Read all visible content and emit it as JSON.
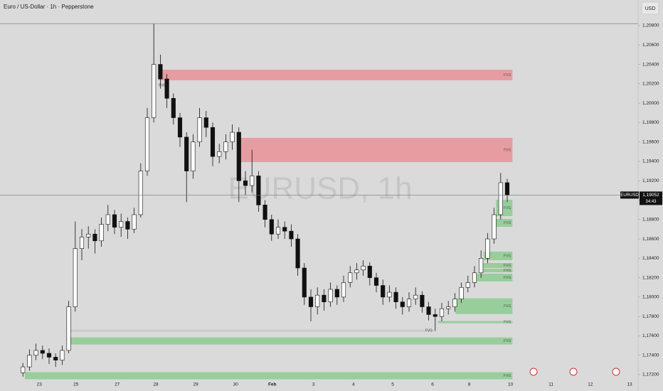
{
  "chart_data": {
    "type": "candlestick",
    "title": "Euro / US-Dollar · 1h · Pepperstone",
    "currency_button": "USD",
    "watermark": "EURUSD, 1h",
    "symbol": "EURUSD",
    "last_price": {
      "value": 1.19052,
      "label": "1,19052"
    },
    "countdown": "34:43",
    "open": [
      1.1722,
      1.1728,
      1.174,
      1.1745,
      1.1742,
      1.1738,
      1.1735,
      1.1745,
      1.179,
      1.185,
      1.1862,
      1.1865,
      1.1858,
      1.1875,
      1.1885,
      1.1872,
      1.1878,
      1.187,
      1.1885,
      1.193,
      1.1985,
      1.204,
      1.2025,
      1.2005,
      1.1985,
      1.1965,
      1.193,
      1.196,
      1.1985,
      1.1975,
      1.1945,
      1.195,
      1.196,
      1.197,
      1.192,
      1.1915,
      1.1925,
      1.1895,
      1.188,
      1.1865,
      1.1872,
      1.1868,
      1.186,
      1.183,
      1.18,
      1.179,
      1.1802,
      1.1795,
      1.1808,
      1.18,
      1.1815,
      1.1825,
      1.1828,
      1.1832,
      1.182,
      1.1812,
      1.18,
      1.1805,
      1.1795,
      1.179,
      1.1798,
      1.1802,
      1.179,
      1.1782,
      1.178,
      1.1788,
      1.179,
      1.1798,
      1.181,
      1.1815,
      1.1825,
      1.184,
      1.186,
      1.1885,
      1.1918
    ],
    "high": [
      1.1732,
      1.1746,
      1.1752,
      1.175,
      1.1747,
      1.1742,
      1.175,
      1.1796,
      1.1878,
      1.187,
      1.1873,
      1.187,
      1.1882,
      1.1895,
      1.189,
      1.1886,
      1.1882,
      1.1892,
      1.1938,
      1.1995,
      1.2082,
      1.205,
      1.203,
      1.201,
      1.199,
      1.197,
      1.1968,
      1.1995,
      1.1992,
      1.198,
      1.1958,
      1.1968,
      1.1978,
      1.1975,
      1.193,
      1.1952,
      1.193,
      1.19,
      1.1885,
      1.188,
      1.1878,
      1.1875,
      1.1865,
      1.1835,
      1.1808,
      1.181,
      1.1808,
      1.1815,
      1.1812,
      1.1822,
      1.1832,
      1.1835,
      1.1838,
      1.1836,
      1.1825,
      1.1818,
      1.1812,
      1.181,
      1.18,
      1.1805,
      1.181,
      1.1806,
      1.1795,
      1.1788,
      1.1794,
      1.1796,
      1.1804,
      1.1815,
      1.1822,
      1.1832,
      1.1848,
      1.1866,
      1.1892,
      1.1928,
      1.1922
    ],
    "low": [
      1.1718,
      1.1724,
      1.1735,
      1.1736,
      1.1731,
      1.1728,
      1.173,
      1.1742,
      1.1785,
      1.1838,
      1.185,
      1.1845,
      1.1852,
      1.1868,
      1.1865,
      1.1862,
      1.186,
      1.1866,
      1.1882,
      1.1925,
      1.198,
      1.2015,
      1.1995,
      1.1978,
      1.1955,
      1.1898,
      1.1922,
      1.1955,
      1.1965,
      1.1935,
      1.1938,
      1.1942,
      1.1952,
      1.1898,
      1.1905,
      1.1908,
      1.1888,
      1.1872,
      1.1858,
      1.186,
      1.186,
      1.1852,
      1.1822,
      1.1792,
      1.1775,
      1.1782,
      1.1786,
      1.179,
      1.1792,
      1.1795,
      1.181,
      1.1818,
      1.1822,
      1.1812,
      1.1805,
      1.1792,
      1.1795,
      1.1788,
      1.1782,
      1.1785,
      1.1792,
      1.1784,
      1.1776,
      1.1765,
      1.1775,
      1.1782,
      1.1785,
      1.1794,
      1.1805,
      1.181,
      1.182,
      1.1835,
      1.1855,
      1.188,
      1.1898
    ],
    "close": [
      1.1728,
      1.174,
      1.1745,
      1.1742,
      1.1738,
      1.1735,
      1.1745,
      1.179,
      1.185,
      1.1862,
      1.1865,
      1.1858,
      1.1875,
      1.1885,
      1.1872,
      1.1878,
      1.187,
      1.1885,
      1.193,
      1.1985,
      1.204,
      1.2025,
      1.2005,
      1.1985,
      1.1965,
      1.193,
      1.196,
      1.1985,
      1.1975,
      1.1945,
      1.195,
      1.196,
      1.197,
      1.192,
      1.1915,
      1.1925,
      1.1895,
      1.188,
      1.1865,
      1.1872,
      1.1868,
      1.186,
      1.183,
      1.18,
      1.179,
      1.1802,
      1.1795,
      1.1808,
      1.18,
      1.1815,
      1.1825,
      1.1828,
      1.1832,
      1.182,
      1.1812,
      1.18,
      1.1805,
      1.1795,
      1.179,
      1.1798,
      1.1802,
      1.179,
      1.1782,
      1.178,
      1.1788,
      1.179,
      1.1798,
      1.181,
      1.1815,
      1.1825,
      1.184,
      1.186,
      1.1885,
      1.1918,
      1.19052
    ],
    "up_color": "#ffffff",
    "down_color": "#111111",
    "hlines": [
      1.2082
    ],
    "zones": [
      {
        "label": "FVG",
        "color": "#e8959b",
        "x": [
          20.7,
          74.8
        ],
        "low": 1.20236,
        "high": 1.20345
      },
      {
        "label": "FVG",
        "color": "#e8959b",
        "x": [
          32.7,
          74.8
        ],
        "low": 1.19392,
        "high": 1.19642
      },
      {
        "label": "FVG",
        "color": "#c9c9c9",
        "x": [
          20.7,
          22.1
        ],
        "low": 1.20174,
        "high": 1.20194
      },
      {
        "label": "FVG",
        "color": "#8fcc94",
        "x": [
          72.3,
          74.8
        ],
        "low": 1.18835,
        "high": 1.19004
      },
      {
        "label": "FVG",
        "color": "#8fcc94",
        "x": [
          72.3,
          74.8
        ],
        "low": 1.18725,
        "high": 1.18806
      },
      {
        "label": "FVG",
        "color": "#8fcc94",
        "x": [
          70.4,
          74.8
        ],
        "low": 1.18381,
        "high": 1.18469
      },
      {
        "label": "FVG",
        "color": "#8fcc94",
        "x": [
          70.1,
          74.8
        ],
        "low": 1.183,
        "high": 1.18351
      },
      {
        "label": "FVG",
        "color": "#8fcc94",
        "x": [
          70.1,
          74.8
        ],
        "low": 1.18256,
        "high": 1.18293
      },
      {
        "label": "FVG",
        "color": "#8fcc94",
        "x": [
          68.8,
          74.8
        ],
        "low": 1.18161,
        "high": 1.18241
      },
      {
        "label": "FVG",
        "color": "#8fcc94",
        "x": [
          66.1,
          74.8
        ],
        "low": 1.17826,
        "high": 1.17987
      },
      {
        "label": "FVG",
        "color": "#8fcc94",
        "x": [
          63.4,
          74.8
        ],
        "low": 1.17731,
        "high": 1.17753
      },
      {
        "label": "FVG",
        "color": "#c9c9c9",
        "x": [
          6.8,
          62.8
        ],
        "low": 1.17643,
        "high": 1.17665
      },
      {
        "label": "FVG",
        "color": "#8fcc94",
        "x": [
          6.8,
          74.8
        ],
        "low": 1.17511,
        "high": 1.17584
      },
      {
        "label": "FVG",
        "color": "#8fcc94",
        "x": [
          0.3,
          74.8
        ],
        "low": 1.17152,
        "high": 1.17225
      }
    ],
    "xlim": [
      -3.5,
      94.0
    ],
    "ylim": [
      1.17156,
      1.21064
    ],
    "xticks": [
      {
        "value": 2.5,
        "label": "23"
      },
      {
        "value": 8.1,
        "label": "25"
      },
      {
        "value": 14.4,
        "label": "27"
      },
      {
        "value": 20.3,
        "label": "28"
      },
      {
        "value": 26.4,
        "label": "29"
      },
      {
        "value": 32.5,
        "label": "30"
      },
      {
        "value": 38.1,
        "label": "Feb"
      },
      {
        "value": 44.4,
        "label": "3"
      },
      {
        "value": 50.5,
        "label": "4"
      },
      {
        "value": 56.5,
        "label": "5"
      },
      {
        "value": 62.6,
        "label": "6"
      },
      {
        "value": 68.2,
        "label": "8"
      },
      {
        "value": 74.5,
        "label": "10"
      },
      {
        "value": 80.7,
        "label": "11"
      },
      {
        "value": 86.7,
        "label": "12"
      },
      {
        "value": 92.7,
        "label": "13"
      }
    ],
    "yticks": [
      {
        "value": 1.172,
        "label": "1,17200"
      },
      {
        "value": 1.174,
        "label": "1,17400"
      },
      {
        "value": 1.176,
        "label": "1,17600"
      },
      {
        "value": 1.178,
        "label": "1,17800"
      },
      {
        "value": 1.18,
        "label": "1,18000"
      },
      {
        "value": 1.182,
        "label": "1,18200"
      },
      {
        "value": 1.184,
        "label": "1,18400"
      },
      {
        "value": 1.186,
        "label": "1,18600"
      },
      {
        "value": 1.188,
        "label": "1,18800"
      },
      {
        "value": 1.19,
        "label": "1,19000"
      },
      {
        "value": 1.192,
        "label": "1,19200"
      },
      {
        "value": 1.194,
        "label": "1,19400"
      },
      {
        "value": 1.196,
        "label": "1,19600"
      },
      {
        "value": 1.198,
        "label": "1,19800"
      },
      {
        "value": 1.2,
        "label": "1,20000"
      },
      {
        "value": 1.202,
        "label": "1,20200"
      },
      {
        "value": 1.204,
        "label": "1,20400"
      },
      {
        "value": 1.206,
        "label": "1,20600"
      },
      {
        "value": 1.208,
        "label": "1,20800"
      }
    ]
  }
}
